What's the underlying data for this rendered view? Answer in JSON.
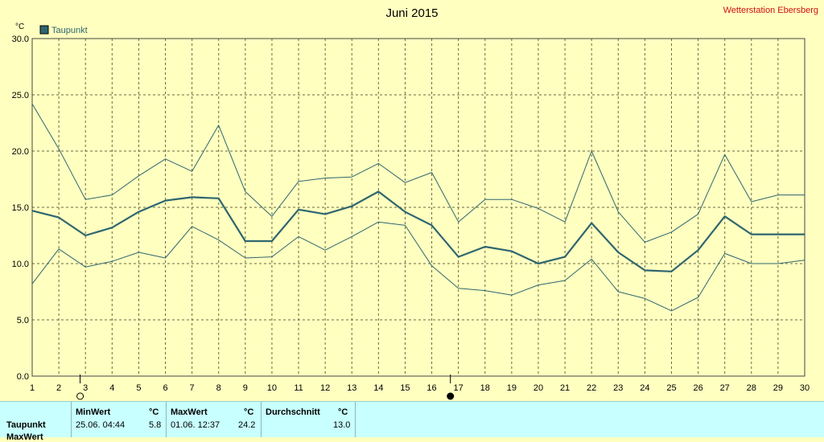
{
  "colors": {
    "background": "#ffffc0",
    "series": "#2e6670",
    "grid": "#6a6a40",
    "station": "#d01010",
    "stats_bg": "#c8ffff"
  },
  "header": {
    "title": "Juni 2015",
    "station": "Wetterstation Ebersberg"
  },
  "chart_data": {
    "type": "line",
    "title": "Juni 2015",
    "ylabel": "°C",
    "xlabel": "",
    "ylim": [
      0,
      30
    ],
    "xlim": [
      1,
      30
    ],
    "yticks": [
      "0.0",
      "5.0",
      "10.0",
      "15.0",
      "20.0",
      "25.0",
      "30.0"
    ],
    "x": [
      1,
      2,
      3,
      4,
      5,
      6,
      7,
      8,
      9,
      10,
      11,
      12,
      13,
      14,
      15,
      16,
      17,
      18,
      19,
      20,
      21,
      22,
      23,
      24,
      25,
      26,
      27,
      28,
      29,
      30
    ],
    "legend": {
      "label": "Taupunkt",
      "position": "top-left"
    },
    "grid": true,
    "series": [
      {
        "name": "Taupunkt",
        "role": "avg",
        "values": [
          14.7,
          14.1,
          12.5,
          13.2,
          14.6,
          15.6,
          15.9,
          15.8,
          12.0,
          12.0,
          14.8,
          14.4,
          15.1,
          16.4,
          14.6,
          13.4,
          10.6,
          11.5,
          11.1,
          10.0,
          10.6,
          13.6,
          11.0,
          9.4,
          9.3,
          11.2,
          14.2,
          12.6,
          12.6,
          12.6
        ]
      },
      {
        "role": "max",
        "values": [
          24.2,
          20.2,
          15.7,
          16.1,
          17.8,
          19.3,
          18.2,
          22.3,
          16.4,
          14.2,
          17.3,
          17.6,
          17.7,
          18.9,
          17.2,
          18.1,
          13.7,
          15.7,
          15.7,
          14.9,
          13.7,
          20.0,
          14.6,
          11.9,
          12.8,
          14.4,
          19.7,
          15.5,
          16.1,
          16.1
        ]
      },
      {
        "role": "min",
        "values": [
          8.2,
          11.3,
          9.7,
          10.2,
          11.0,
          10.5,
          13.3,
          12.1,
          10.5,
          10.6,
          12.4,
          11.2,
          12.4,
          13.7,
          13.4,
          9.8,
          7.8,
          7.6,
          7.2,
          8.1,
          8.5,
          10.4,
          7.5,
          6.9,
          5.8,
          7.0,
          10.9,
          10.0,
          10.0,
          10.3
        ]
      }
    ]
  },
  "stats": {
    "row_label": "Taupunkt",
    "row2_label": "MaxWert",
    "min_header": "MinWert",
    "min_unit": "°C",
    "min_time": "25.06.  04:44",
    "min_value": "5.8",
    "max_header": "MaxWert",
    "max_unit": "°C",
    "max_time": "01.06.  12:37",
    "max_value": "24.2",
    "avg_header": "Durchschnitt",
    "avg_unit": "°C",
    "avg_value": "13.0"
  }
}
